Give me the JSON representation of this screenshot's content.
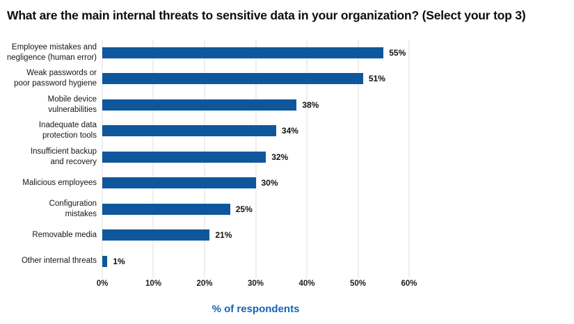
{
  "title": "What are the main internal threats to sensitive data in your organization? (Select your top 3)",
  "chart_data": {
    "type": "bar",
    "orientation": "horizontal",
    "title": "What are the main internal threats to sensitive data in your organization? (Select your top 3)",
    "categories": [
      "Employee mistakes and\nnegligence (human error)",
      "Weak passwords or\npoor password hygiene",
      "Mobile device\nvulnerabilities",
      "Inadequate data\nprotection tools",
      "Insufficient backup\nand recovery",
      "Malicious employees",
      "Configuration\nmistakes",
      "Removable media",
      "Other internal threats"
    ],
    "values": [
      55,
      51,
      38,
      34,
      32,
      30,
      25,
      21,
      1
    ],
    "value_labels": [
      "55%",
      "51%",
      "38%",
      "34%",
      "32%",
      "30%",
      "25%",
      "21%",
      "1%"
    ],
    "xlabel": "% of respondents",
    "x_ticks": [
      "0%",
      "10%",
      "20%",
      "30%",
      "40%",
      "50%",
      "60%"
    ],
    "xlim": [
      0,
      60
    ],
    "grid": true,
    "legend": "none",
    "bar_color": "#0e579c",
    "gridline_color": "#dcdcdc",
    "xlabel_color": "#1565b8"
  }
}
